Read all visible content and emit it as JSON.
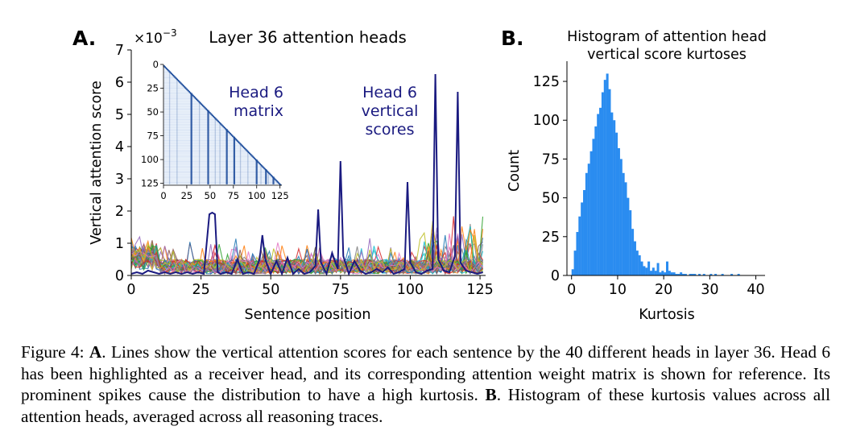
{
  "panel_a": {
    "letter": "A.",
    "title": "Layer 36 attention heads",
    "scale_label": "×10",
    "scale_exp": "−3",
    "xlabel": "Sentence position",
    "ylabel": "Vertical attention score",
    "head_vertical_label": [
      "Head 6",
      "vertical",
      "scores"
    ],
    "inset_label": [
      "Head 6",
      "matrix"
    ]
  },
  "panel_b": {
    "letter": "B.",
    "title_lines": [
      "Histogram of attention head",
      "vertical score kurtoses"
    ],
    "xlabel": "Kurtosis",
    "ylabel": "Count"
  },
  "colors": {
    "head6": "#1a1a80",
    "hist": "#2a8cf0",
    "inset": "#1f4e9c",
    "tab10": [
      "#1f77b4",
      "#ff7f0e",
      "#2ca02c",
      "#d62728",
      "#9467bd",
      "#8c564b",
      "#e377c2",
      "#7f7f7f",
      "#bcbd22",
      "#17becf"
    ]
  },
  "chart_data": [
    {
      "type": "line",
      "title": "Layer 36 attention heads",
      "xlabel": "Sentence position",
      "ylabel": "Vertical attention score",
      "y_scale_note": "×10^−3",
      "xlim": [
        0,
        127
      ],
      "ylim": [
        0,
        7
      ],
      "xticks": [
        0,
        25,
        50,
        75,
        100,
        125
      ],
      "yticks": [
        0,
        1,
        2,
        3,
        4,
        5,
        6,
        7
      ],
      "highlight_series": {
        "name": "Head 6",
        "x": [
          0,
          2,
          4,
          6,
          8,
          10,
          12,
          14,
          16,
          18,
          20,
          22,
          24,
          26,
          28,
          29,
          30,
          31,
          32,
          34,
          36,
          38,
          40,
          42,
          44,
          46,
          47,
          48,
          50,
          52,
          54,
          56,
          58,
          60,
          62,
          64,
          66,
          67,
          68,
          70,
          72,
          74,
          75,
          76,
          78,
          80,
          82,
          84,
          86,
          88,
          90,
          92,
          94,
          96,
          98,
          99,
          100,
          102,
          104,
          106,
          108,
          109,
          110,
          112,
          114,
          116,
          117,
          118,
          120,
          122,
          124,
          126
        ],
        "values": [
          0.05,
          0.1,
          0.05,
          0.15,
          0.1,
          0.05,
          0.1,
          0.05,
          0.1,
          0.05,
          0.1,
          0.05,
          0.1,
          0.05,
          1.9,
          1.95,
          1.9,
          0.1,
          0.05,
          0.1,
          0.05,
          0.5,
          0.05,
          0.1,
          0.05,
          0.5,
          1.25,
          0.5,
          0.05,
          0.45,
          0.05,
          0.55,
          0.05,
          0.2,
          0.05,
          0.1,
          0.3,
          2.05,
          0.4,
          0.05,
          0.7,
          0.2,
          3.55,
          0.6,
          0.05,
          0.45,
          0.15,
          0.05,
          0.1,
          0.2,
          0.1,
          0.25,
          0.05,
          0.1,
          0.2,
          2.9,
          0.4,
          0.1,
          0.05,
          0.15,
          0.2,
          6.25,
          0.5,
          0.15,
          0.1,
          0.6,
          5.7,
          0.4,
          0.15,
          0.1,
          0.05,
          0.1
        ]
      },
      "background_series_note": "39 other heads, values roughly between 0 and 1.2 with occasional peaks near 1.5–2.2 around positions 105–125",
      "annotations": [
        "Head 6 vertical scores"
      ],
      "inset": {
        "type": "heatmap",
        "label": "Head 6 matrix",
        "xticks": [
          0,
          25,
          50,
          75,
          100,
          125
        ],
        "yticks": [
          0,
          25,
          50,
          75,
          100,
          125
        ],
        "structure": "lower-triangular attention matrix with vertical stripes at columns near 29, 47, 67, 75, 99, 109, 117"
      }
    },
    {
      "type": "bar",
      "title": "Histogram of attention head vertical score kurtoses",
      "xlabel": "Kurtosis",
      "ylabel": "Count",
      "xlim": [
        -1,
        42
      ],
      "ylim": [
        0,
        138
      ],
      "xticks": [
        0,
        10,
        20,
        30,
        40
      ],
      "yticks": [
        0,
        25,
        50,
        75,
        100,
        125
      ],
      "bin_width": 0.5,
      "bin_start": 0,
      "values": [
        4,
        16,
        28,
        38,
        47,
        55,
        66,
        72,
        80,
        88,
        96,
        104,
        108,
        118,
        126,
        130,
        120,
        105,
        100,
        92,
        82,
        75,
        66,
        60,
        50,
        42,
        30,
        22,
        16,
        13,
        9,
        6,
        5,
        9,
        3,
        5,
        3,
        8,
        2,
        3,
        2,
        9,
        3,
        2,
        2,
        1,
        1,
        2,
        1,
        1,
        0,
        1,
        1,
        1,
        0,
        1,
        0,
        1,
        0,
        0,
        1,
        0,
        1,
        0,
        0,
        1,
        0,
        0,
        0,
        1,
        0,
        0,
        1,
        0,
        0,
        0,
        0,
        0,
        0,
        0,
        0,
        0,
        0,
        0,
        0,
        0,
        0,
        0,
        0,
        0,
        0,
        0,
        0,
        0,
        0,
        0,
        0,
        0,
        0,
        0
      ]
    }
  ],
  "caption": {
    "fig_label": "Figure 4: ",
    "a_marker": "A",
    "part_a": ". Lines show the vertical attention scores for each sentence by the 40 different heads in layer 36. Head 6 has been highlighted as a receiver head, and its corresponding attention weight matrix is shown for reference. Its prominent spikes cause the distribution to have a high kurtosis. ",
    "b_marker": "B",
    "part_b": ". Histogram of these kurtosis values across all attention heads, averaged across all reasoning traces."
  }
}
